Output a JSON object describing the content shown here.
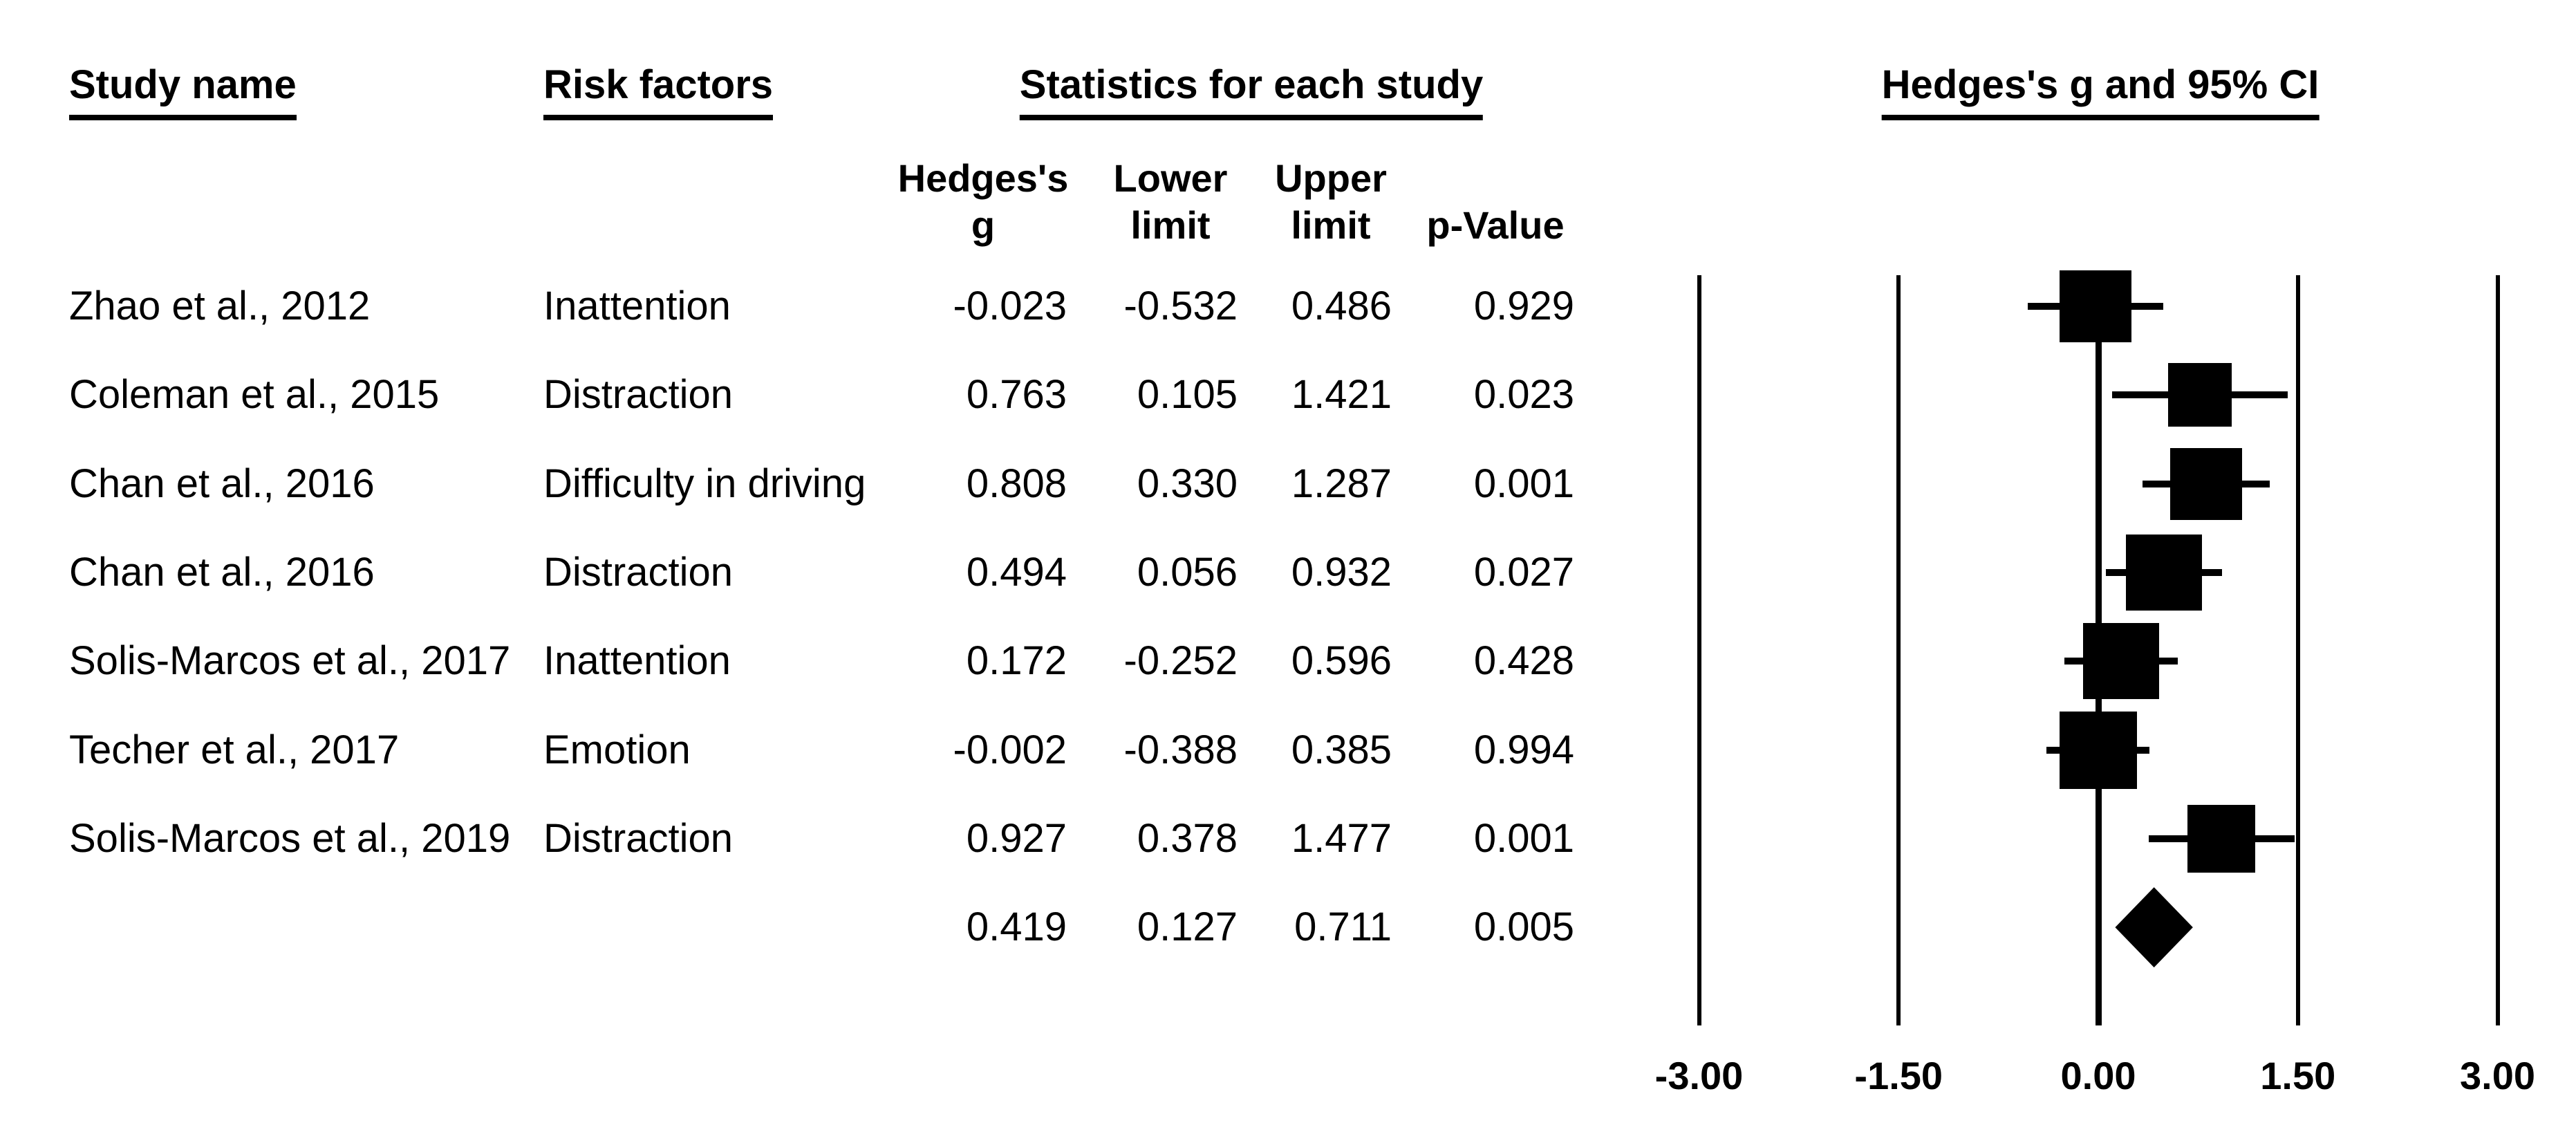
{
  "figure": {
    "background": "#ffffff",
    "ink_color": "#000000"
  },
  "headers": {
    "study": "Study name",
    "risk": "Risk factors",
    "stats": "Statistics for each study",
    "plot": "Hedges's g and 95% CI"
  },
  "subheaders": {
    "hedges": "Hedges's\ng",
    "lower": "Lower\nlimit",
    "upper": "Upper\nlimit",
    "p": "p-Value"
  },
  "chart_data": {
    "type": "forest",
    "title": "Hedges's g and 95% CI",
    "effect_measure": "Hedges's g",
    "xlim": [
      -3.0,
      3.0
    ],
    "x_ticks": [
      -3.0,
      -1.5,
      0.0,
      1.5,
      3.0
    ],
    "x_tick_labels": [
      "-3.00",
      "-1.50",
      "0.00",
      "1.50",
      "3.00"
    ],
    "columns": [
      "Study name",
      "Risk factors",
      "Hedges's g",
      "Lower limit",
      "Upper limit",
      "p-Value"
    ],
    "studies": [
      {
        "study": "Zhao et al., 2012",
        "risk_factor": "Inattention",
        "hedges_g": -0.023,
        "lower": -0.532,
        "upper": 0.486,
        "p": 0.929
      },
      {
        "study": "Coleman et al., 2015",
        "risk_factor": "Distraction",
        "hedges_g": 0.763,
        "lower": 0.105,
        "upper": 1.421,
        "p": 0.023
      },
      {
        "study": "Chan et al., 2016",
        "risk_factor": "Difficulty in driving",
        "hedges_g": 0.808,
        "lower": 0.33,
        "upper": 1.287,
        "p": 0.001
      },
      {
        "study": "Chan et al., 2016",
        "risk_factor": "Distraction",
        "hedges_g": 0.494,
        "lower": 0.056,
        "upper": 0.932,
        "p": 0.027
      },
      {
        "study": "Solis-Marcos et al., 2017",
        "risk_factor": "Inattention",
        "hedges_g": 0.172,
        "lower": -0.252,
        "upper": 0.596,
        "p": 0.428
      },
      {
        "study": "Techer et al., 2017",
        "risk_factor": "Emotion",
        "hedges_g": -0.002,
        "lower": -0.388,
        "upper": 0.385,
        "p": 0.994
      },
      {
        "study": "Solis-Marcos et al., 2019",
        "risk_factor": "Distraction",
        "hedges_g": 0.927,
        "lower": 0.378,
        "upper": 1.477,
        "p": 0.001
      }
    ],
    "summary": {
      "study": "",
      "risk_factor": "",
      "hedges_g": 0.419,
      "lower": 0.127,
      "upper": 0.711,
      "p": 0.005,
      "marker": "diamond"
    }
  }
}
